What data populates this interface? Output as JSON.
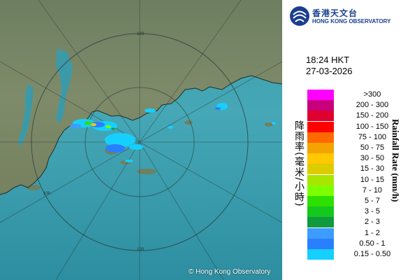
{
  "header": {
    "org_name_cn": "香港天文台",
    "org_name_en": "HONG KONG OBSERVATORY"
  },
  "timestamp": {
    "time": "18:24 HKT",
    "date": "27-03-2026"
  },
  "legend": {
    "axis_label_cn": "降雨率(毫米/小時)",
    "axis_label_en": "Rainfall Rate (mm/h)",
    "items": [
      {
        "label": ">300",
        "color": "#ff00ff"
      },
      {
        "label": "200 - 300",
        "color": "#c8007e"
      },
      {
        "label": "150 - 200",
        "color": "#e00030"
      },
      {
        "label": "100 - 150",
        "color": "#ff0000"
      },
      {
        "label": "75 - 100",
        "color": "#ff6a00"
      },
      {
        "label": "50 - 75",
        "color": "#f4a300"
      },
      {
        "label": "30 - 50",
        "color": "#ffc800"
      },
      {
        "label": "15 - 30",
        "color": "#dccc00"
      },
      {
        "label": "10 - 15",
        "color": "#a8e600"
      },
      {
        "label": "7 - 10",
        "color": "#7cff00"
      },
      {
        "label": "5 - 7",
        "color": "#2ee000"
      },
      {
        "label": "3 - 5",
        "color": "#14c81e"
      },
      {
        "label": "2 - 3",
        "color": "#0f9a40"
      },
      {
        "label": "1 - 2",
        "color": "#3c9cff"
      },
      {
        "label": "0.50 - 1",
        "color": "#2a7fff"
      },
      {
        "label": "0.15 - 0.50",
        "color": "#15d0ff"
      }
    ]
  },
  "map": {
    "range_ring_label": "100",
    "copyright": "© Hong Kong Observatory"
  }
}
